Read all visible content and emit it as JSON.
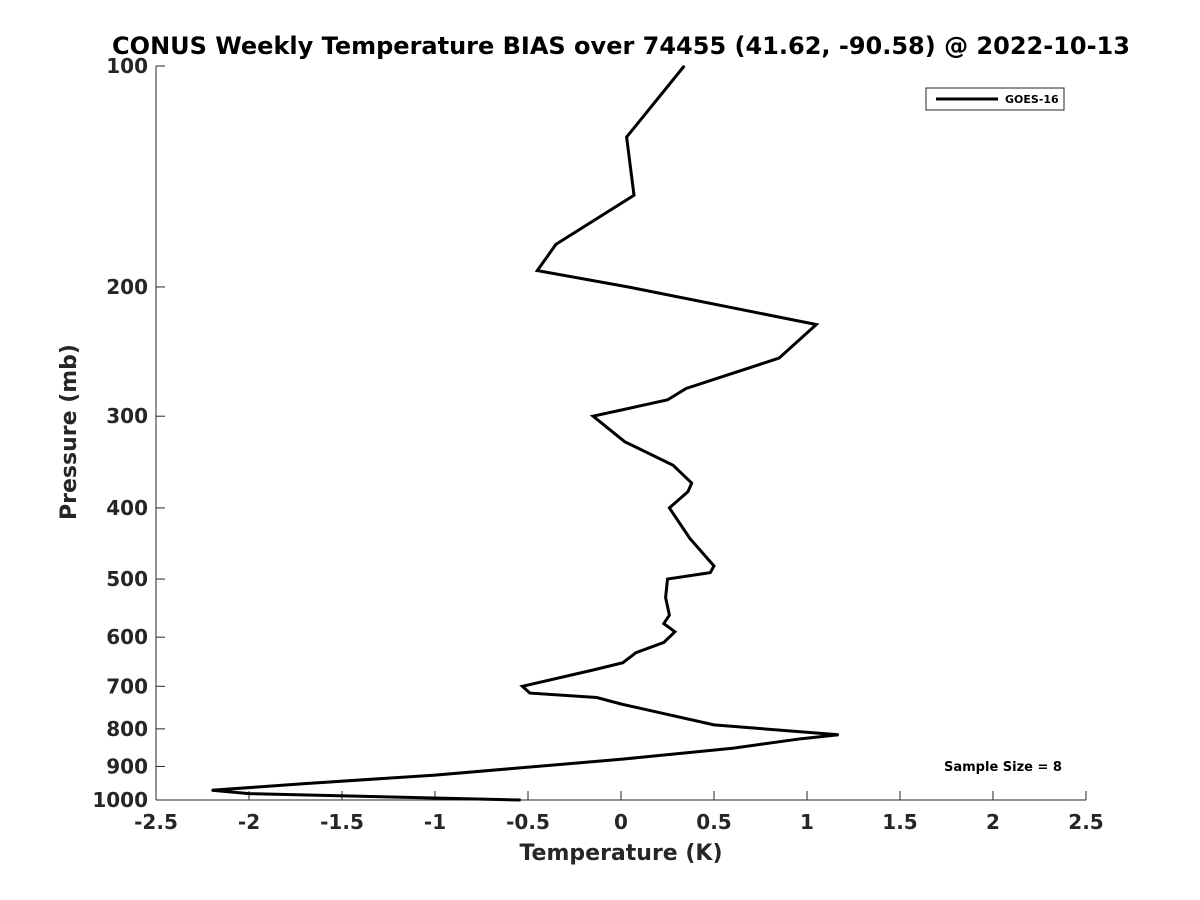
{
  "chart_data": {
    "type": "line",
    "title": "CONUS Weekly Temperature BIAS over 74455 (41.62, -90.58) @ 2022-10-13",
    "xlabel": "Temperature (K)",
    "ylabel": "Pressure (mb)",
    "xlim": [
      -2.5,
      2.5
    ],
    "ylim": [
      1000,
      100
    ],
    "y_scale": "log",
    "x_ticks": [
      "-2.5",
      "-2",
      "-1.5",
      "-1",
      "-0.5",
      "0",
      "0.5",
      "1",
      "1.5",
      "2",
      "2.5"
    ],
    "x_tick_values": [
      -2.5,
      -2,
      -1.5,
      -1,
      -0.5,
      0,
      0.5,
      1,
      1.5,
      2,
      2.5
    ],
    "y_ticks": [
      "100",
      "200",
      "300",
      "400",
      "500",
      "600",
      "700",
      "800",
      "900",
      "1000"
    ],
    "y_tick_values": [
      100,
      200,
      300,
      400,
      500,
      600,
      700,
      800,
      900,
      1000
    ],
    "grid": false,
    "legend_position": "top-right",
    "annotation": "Sample Size = 8",
    "series": [
      {
        "name": "GOES-16",
        "color": "#000000",
        "points": [
          {
            "x": 0.34,
            "p": 100
          },
          {
            "x": 0.03,
            "p": 125
          },
          {
            "x": 0.07,
            "p": 150
          },
          {
            "x": -0.35,
            "p": 175
          },
          {
            "x": -0.45,
            "p": 190
          },
          {
            "x": 0.04,
            "p": 200
          },
          {
            "x": 1.05,
            "p": 225
          },
          {
            "x": 0.85,
            "p": 250
          },
          {
            "x": 0.35,
            "p": 275
          },
          {
            "x": 0.25,
            "p": 285
          },
          {
            "x": -0.15,
            "p": 300
          },
          {
            "x": 0.02,
            "p": 325
          },
          {
            "x": 0.28,
            "p": 350
          },
          {
            "x": 0.38,
            "p": 370
          },
          {
            "x": 0.36,
            "p": 380
          },
          {
            "x": 0.26,
            "p": 400
          },
          {
            "x": 0.37,
            "p": 440
          },
          {
            "x": 0.5,
            "p": 480
          },
          {
            "x": 0.48,
            "p": 490
          },
          {
            "x": 0.25,
            "p": 500
          },
          {
            "x": 0.24,
            "p": 530
          },
          {
            "x": 0.26,
            "p": 560
          },
          {
            "x": 0.23,
            "p": 575
          },
          {
            "x": 0.29,
            "p": 590
          },
          {
            "x": 0.23,
            "p": 610
          },
          {
            "x": 0.08,
            "p": 630
          },
          {
            "x": 0.01,
            "p": 650
          },
          {
            "x": -0.15,
            "p": 665
          },
          {
            "x": -0.53,
            "p": 700
          },
          {
            "x": -0.49,
            "p": 715
          },
          {
            "x": -0.13,
            "p": 725
          },
          {
            "x": 0.0,
            "p": 740
          },
          {
            "x": 0.5,
            "p": 790
          },
          {
            "x": 1.17,
            "p": 815
          },
          {
            "x": 0.97,
            "p": 825
          },
          {
            "x": 0.6,
            "p": 850
          },
          {
            "x": 0.0,
            "p": 880
          },
          {
            "x": -1.0,
            "p": 925
          },
          {
            "x": -1.7,
            "p": 950
          },
          {
            "x": -2.2,
            "p": 970
          },
          {
            "x": -2.0,
            "p": 980
          },
          {
            "x": -0.54,
            "p": 1000
          }
        ]
      }
    ]
  }
}
